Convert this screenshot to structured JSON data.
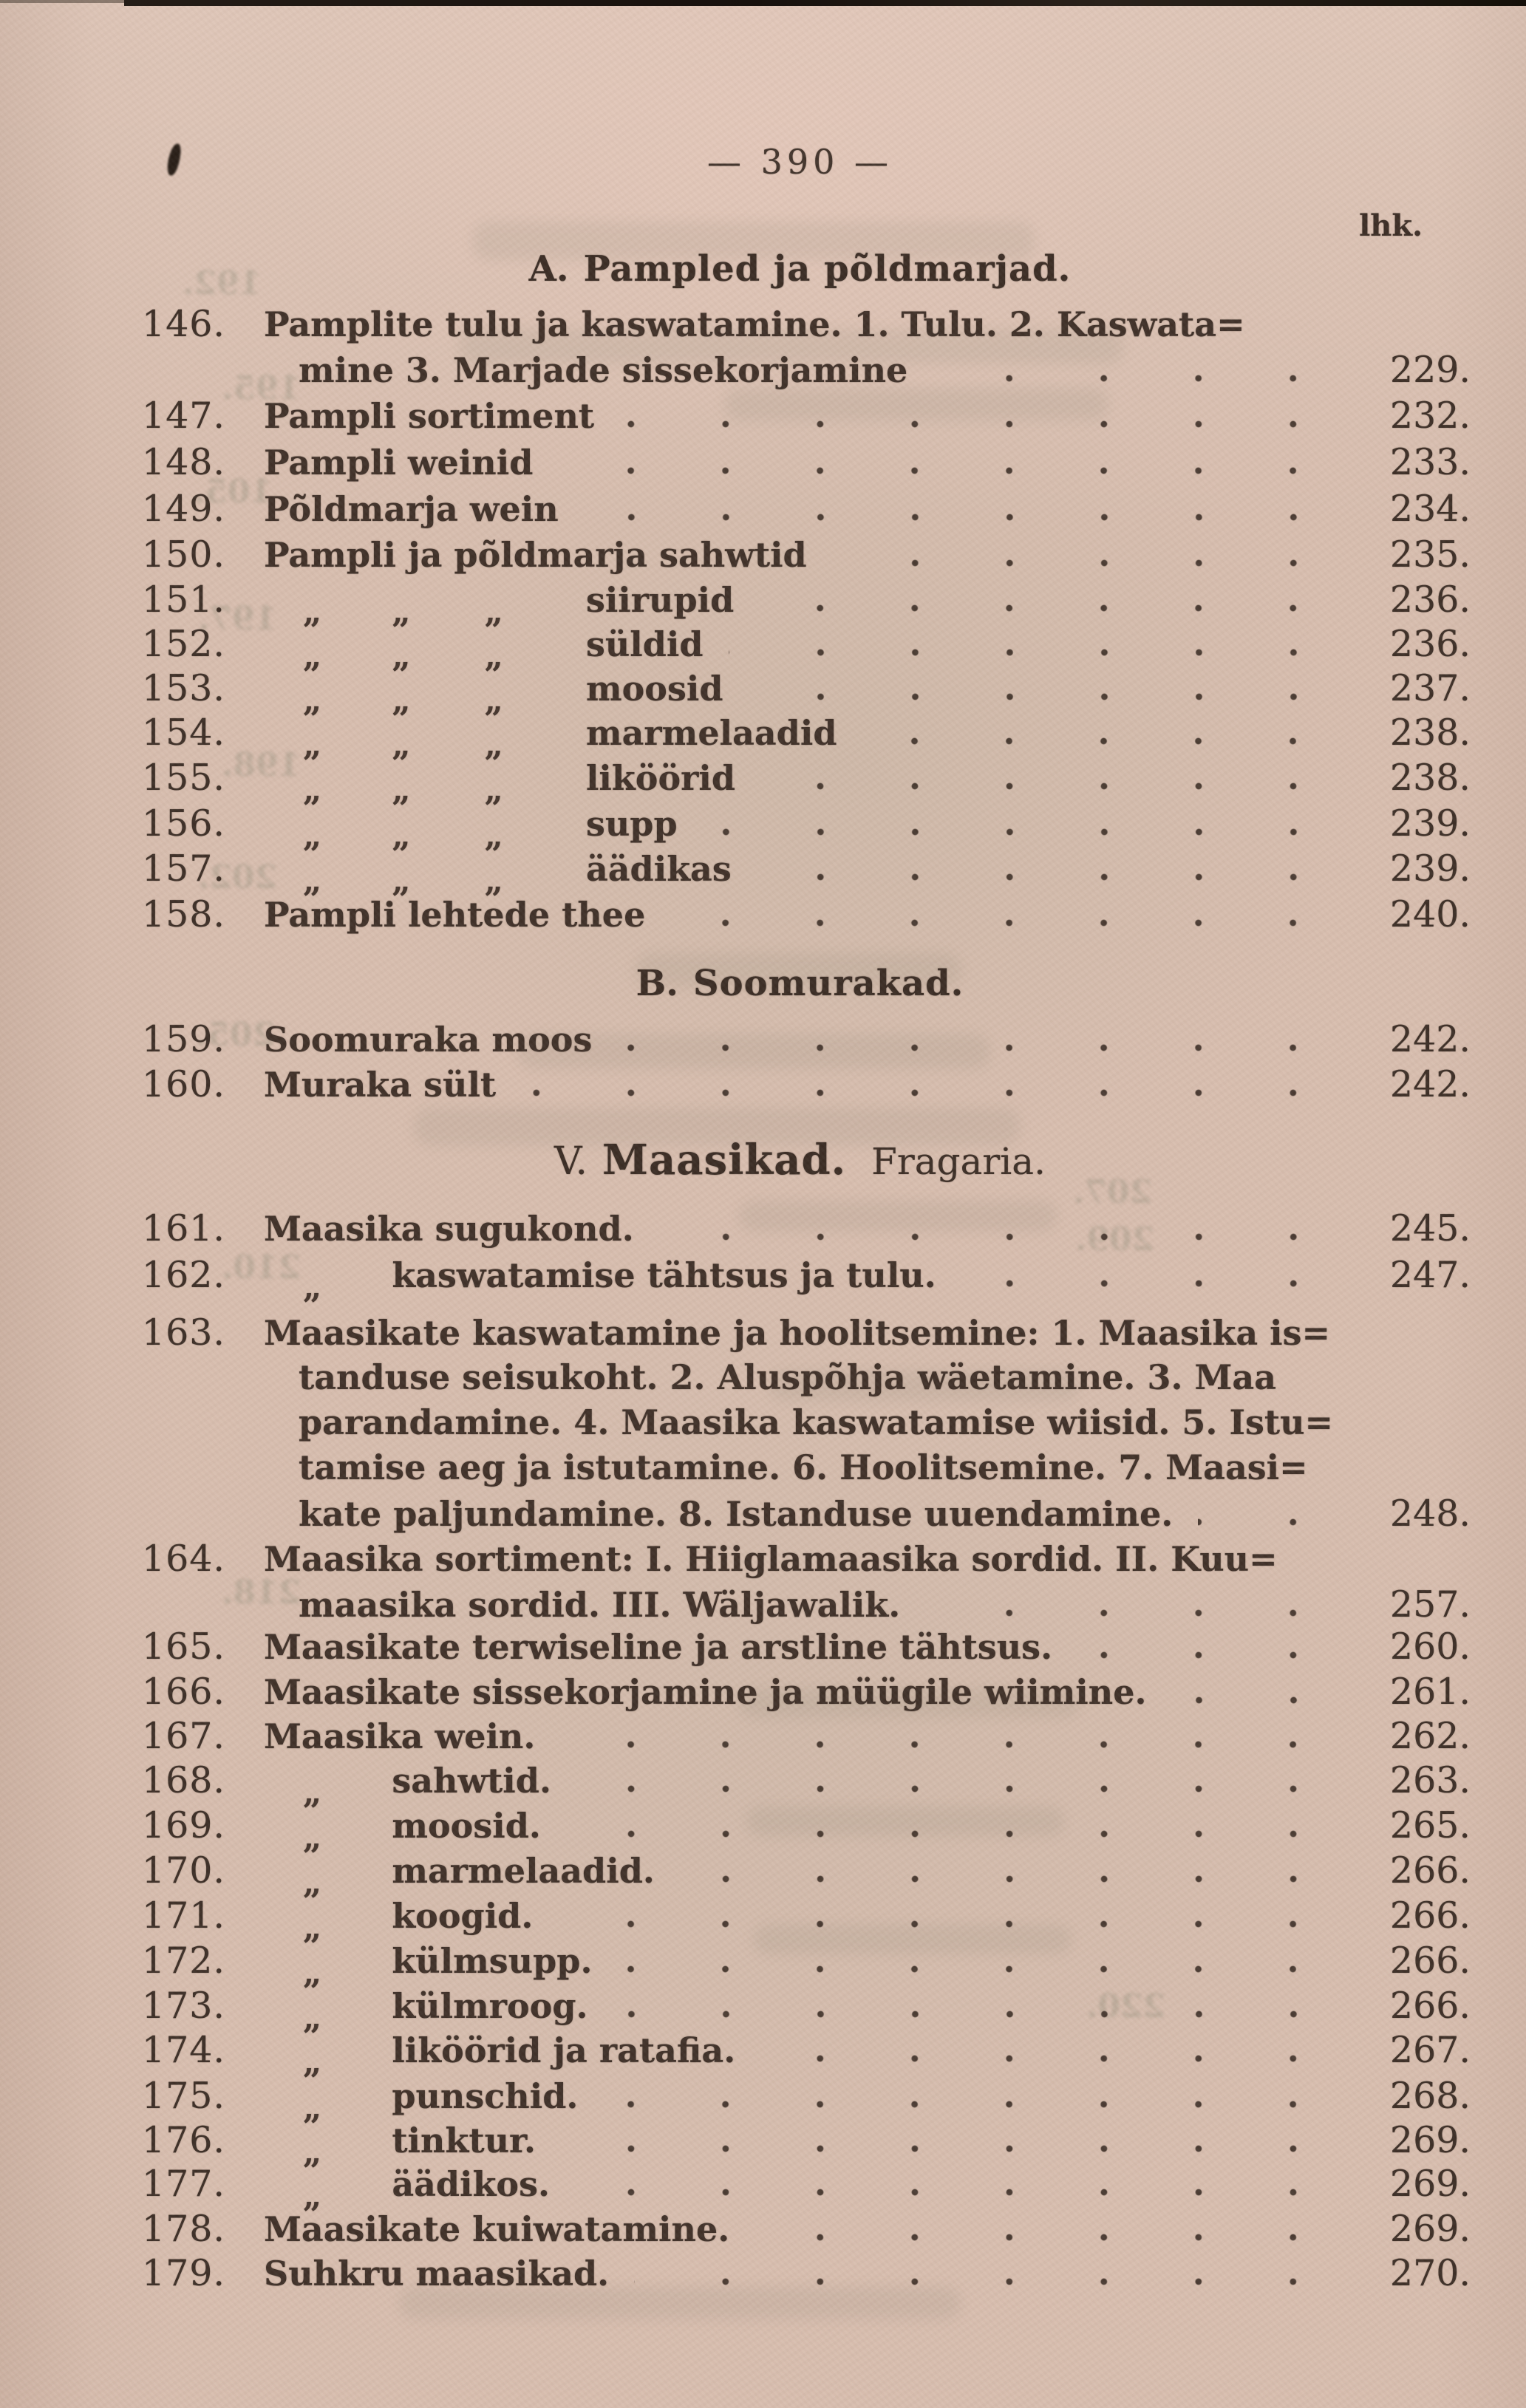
{
  "meta": {
    "page_number_display": "— 390 —",
    "page_col_label": "lhk."
  },
  "colors": {
    "paper": "#d7bdae",
    "ink": "#3c2e26",
    "ghost_bleedthrough": "#666d58"
  },
  "rows": [
    {
      "type": "heading",
      "prefix": "A.",
      "title": "Pampled ja põldmarjad.",
      "suffix": ""
    },
    {
      "type": "entry",
      "num": "146.",
      "text": "Pamplite tulu ja kaswatamine. 1. Tulu. 2. Kaswata="
    },
    {
      "type": "cont",
      "text": "mine 3. Marjade sissekorjamine",
      "page": "229."
    },
    {
      "type": "entry",
      "num": "147.",
      "text": "Pampli sortiment",
      "page": "232."
    },
    {
      "type": "entry",
      "num": "148.",
      "text": "Pampli weinid",
      "page": "233."
    },
    {
      "type": "entry",
      "num": "149.",
      "text": "Põldmarja wein",
      "page": "234."
    },
    {
      "type": "entry",
      "num": "150.",
      "text": "Pampli ja põldmarja sahwtid",
      "page": "235."
    },
    {
      "type": "ditto3",
      "num": "151.",
      "text": "siirupid",
      "page": "236."
    },
    {
      "type": "ditto3",
      "num": "152.",
      "text": "süldid",
      "page": "236."
    },
    {
      "type": "ditto3",
      "num": "153.",
      "text": "moosid",
      "page": "237."
    },
    {
      "type": "ditto3",
      "num": "154.",
      "text": "marmelaadid",
      "page": "238."
    },
    {
      "type": "ditto3",
      "num": "155.",
      "text": "liköörid",
      "page": "238."
    },
    {
      "type": "ditto3",
      "num": "156.",
      "text": "supp",
      "page": "239."
    },
    {
      "type": "ditto3",
      "num": "157.",
      "text": "äädikas",
      "page": "239."
    },
    {
      "type": "entry",
      "num": "158.",
      "text": "Pampli lehtede thee",
      "page": "240."
    },
    {
      "type": "heading",
      "prefix": "B.",
      "title": "Soomurakad.",
      "suffix": ""
    },
    {
      "type": "entry",
      "num": "159.",
      "text": "Soomuraka moos",
      "page": "242."
    },
    {
      "type": "entry",
      "num": "160.",
      "text": "Muraka sült",
      "page": "242."
    },
    {
      "type": "heading2",
      "prefix": "V.",
      "title": "Maasikad.",
      "suffix": "Fragaria."
    },
    {
      "type": "entry",
      "num": "161.",
      "text": "Maasika sugukond.",
      "page": "245."
    },
    {
      "type": "ditto1",
      "num": "162.",
      "text": "kaswatamise tähtsus ja tulu.",
      "page": "247."
    },
    {
      "type": "entry",
      "num": "163.",
      "text": "Maasikate kaswatamine ja hoolitsemine: 1. Maasika is="
    },
    {
      "type": "cont",
      "text": "tanduse seisukoht. 2. Aluspõhja wäetamine. 3. Maa"
    },
    {
      "type": "cont",
      "text": "parandamine. 4. Maasika kaswatamise wiisid. 5. Istu="
    },
    {
      "type": "cont",
      "text": "tamise aeg ja istutamine. 6. Hoolitsemine. 7. Maasi="
    },
    {
      "type": "cont",
      "text": "kate paljundamine. 8. Istanduse uuendamine.",
      "page": "248."
    },
    {
      "type": "entry",
      "num": "164.",
      "text": "Maasika sortiment: I. Hiiglamaasika sordid. II. Kuu="
    },
    {
      "type": "cont",
      "text": "maasika sordid. III. Wäljawalik.",
      "page": "257."
    },
    {
      "type": "entry",
      "num": "165.",
      "text": "Maasikate terwiseline ja arstline tähtsus.",
      "page": "260."
    },
    {
      "type": "entry",
      "num": "166.",
      "text": "Maasikate sissekorjamine ja müügile wiimine.",
      "page": "261."
    },
    {
      "type": "entry",
      "num": "167.",
      "text": "Maasika wein.",
      "page": "262."
    },
    {
      "type": "ditto1",
      "num": "168.",
      "text": "sahwtid.",
      "page": "263."
    },
    {
      "type": "ditto1",
      "num": "169.",
      "text": "moosid.",
      "page": "265."
    },
    {
      "type": "ditto1",
      "num": "170.",
      "text": "marmelaadid.",
      "page": "266."
    },
    {
      "type": "ditto1",
      "num": "171.",
      "text": "koogid.",
      "page": "266."
    },
    {
      "type": "ditto1",
      "num": "172.",
      "text": "külmsupp.",
      "page": "266."
    },
    {
      "type": "ditto1",
      "num": "173.",
      "text": "külmroog.",
      "page": "266."
    },
    {
      "type": "ditto1",
      "num": "174.",
      "text": "liköörid ja ratafia.",
      "page": "267."
    },
    {
      "type": "ditto1",
      "num": "175.",
      "text": "punschid.",
      "page": "268."
    },
    {
      "type": "ditto1",
      "num": "176.",
      "text": "tinktur.",
      "page": "269."
    },
    {
      "type": "ditto1",
      "num": "177.",
      "text": "äädikos.",
      "page": "269."
    },
    {
      "type": "entry",
      "num": "178.",
      "text": "Maasikate kuiwatamine.",
      "page": "269."
    },
    {
      "type": "entry",
      "num": "179.",
      "text": "Suhkru maasikad.",
      "page": "270."
    }
  ],
  "artifacts": {
    "ghost_numbers": [
      "192.",
      "195.",
      "105.",
      "197.",
      "198.",
      "202.",
      "205.",
      "207.",
      "209.",
      "210.",
      "218.",
      "220."
    ]
  }
}
